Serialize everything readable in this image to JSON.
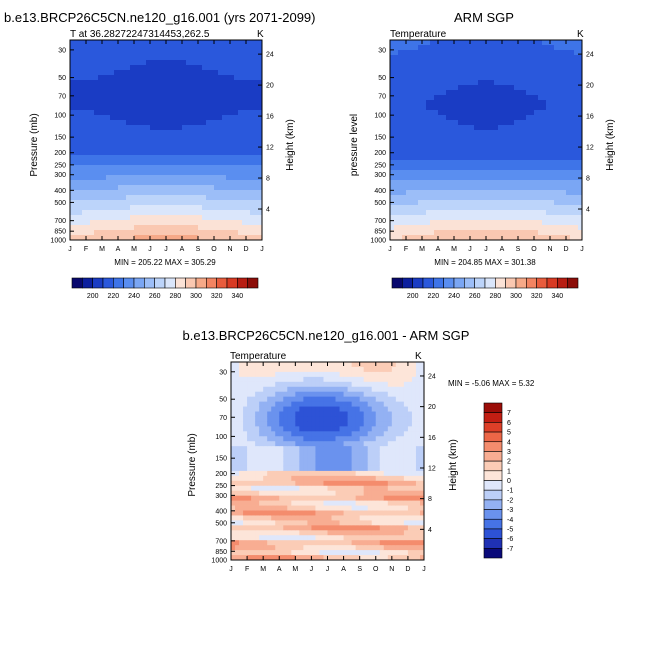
{
  "colors": {
    "seq_blue_red": [
      "#08086e",
      "#0c1f9e",
      "#1a3cc4",
      "#2a58dc",
      "#3e74e8",
      "#5a8ef0",
      "#7aa6f4",
      "#9cbef8",
      "#bcd4fa",
      "#dae6fb",
      "#fbe2d6",
      "#fac8b1",
      "#f6a988",
      "#f28462",
      "#e85c3d",
      "#d83a23",
      "#b71d12",
      "#8c0d08"
    ],
    "diff": [
      "#0a0a7a",
      "#1f31b4",
      "#2d52d6",
      "#4673e6",
      "#6a92ee",
      "#93b1f3",
      "#bccff8",
      "#dfe7fb",
      "#fde5d9",
      "#fbccb6",
      "#f8ad92",
      "#f48c6d",
      "#ec6647",
      "#dd3f28",
      "#c21e13",
      "#9b0d08"
    ]
  },
  "months": [
    "J",
    "F",
    "M",
    "A",
    "M",
    "J",
    "J",
    "A",
    "S",
    "O",
    "N",
    "D",
    "J"
  ],
  "pressure_labels": [
    "30",
    "50",
    "70",
    "100",
    "150",
    "200",
    "250",
    "300",
    "400",
    "500",
    "700",
    "850",
    "1000"
  ],
  "height_labels": [
    "4",
    "8",
    "12",
    "16",
    "20",
    "24"
  ],
  "k_label": "K",
  "chart_data": [
    {
      "type": "heatmap",
      "title": "b.e13.BRCP26C5CN.ne120_g16.001 (yrs 2071-2099)",
      "subtitle": "T at 36.28272247314453,262.5",
      "ylabel": "Pressure (mb)",
      "ylabel_right": "Height (km)",
      "stats": "MIN = 205.22 MAX = 305.29",
      "colorbar_labels": [
        "200",
        "220",
        "240",
        "260",
        "280",
        "300",
        "320",
        "340"
      ],
      "min": 205.22,
      "max": 305.29
    },
    {
      "type": "heatmap",
      "title": "ARM SGP",
      "subtitle": "Temperature",
      "ylabel": "pressure level",
      "ylabel_right": "Height (km)",
      "stats": "MIN = 204.85 MAX = 301.38",
      "colorbar_labels": [
        "200",
        "220",
        "240",
        "260",
        "280",
        "300",
        "320",
        "340"
      ],
      "min": 204.85,
      "max": 301.38
    },
    {
      "type": "heatmap",
      "title": "b.e13.BRCP26C5CN.ne120_g16.001 - ARM SGP",
      "subtitle": "Temperature",
      "ylabel": "Pressure (mb)",
      "ylabel_right": "Height (km)",
      "stats": "MIN =  -5.06 MAX =  5.32",
      "colorbar_labels": [
        "7",
        "6",
        "5",
        "4",
        "3",
        "2",
        "1",
        "0",
        "-1",
        "-2",
        "-3",
        "-4",
        "-5",
        "-6",
        "-7"
      ],
      "min": -5.06,
      "max": 5.32
    }
  ]
}
